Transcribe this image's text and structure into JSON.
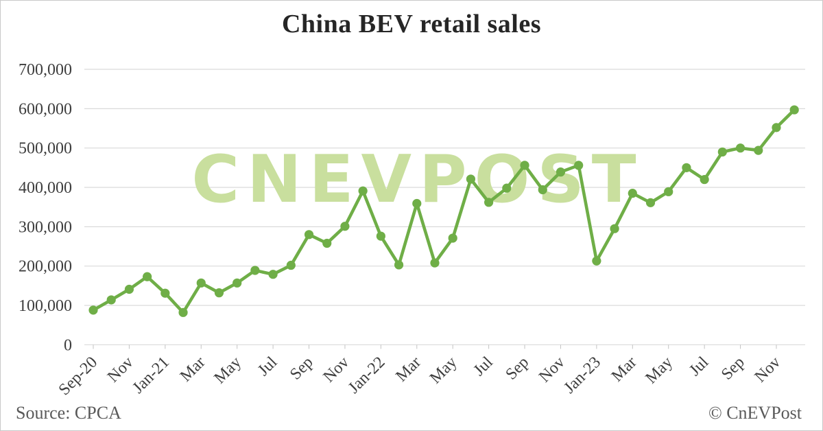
{
  "title": "China BEV retail sales",
  "watermark": "CNEVPOST",
  "footer": {
    "source": "Source: CPCA",
    "copyright": "© CnEVPost"
  },
  "colors": {
    "line": "#6fae47",
    "marker": "#6fae47",
    "watermark": "#c9df9e",
    "grid": "#d9d9d9",
    "tick": "#c3c3c3",
    "axis_text": "#3d3d3d",
    "title_text": "#262626",
    "footer_text": "#595959",
    "background": "#ffffff",
    "border": "#c9c9c9"
  },
  "chart_data": {
    "type": "line",
    "title": "China BEV retail sales",
    "xlabel": "",
    "ylabel": "",
    "ylim": [
      0,
      700000
    ],
    "y_tick_step": 100000,
    "grid": "horizontal",
    "legend": "none",
    "marker": "circle",
    "source": "CPCA",
    "categories": [
      "Sep-20",
      "Oct-20",
      "Nov-20",
      "Dec-20",
      "Jan-21",
      "Feb-21",
      "Mar-21",
      "Apr-21",
      "May-21",
      "Jun-21",
      "Jul-21",
      "Aug-21",
      "Sep-21",
      "Oct-21",
      "Nov-21",
      "Dec-21",
      "Jan-22",
      "Feb-22",
      "Mar-22",
      "Apr-22",
      "May-22",
      "Jun-22",
      "Jul-22",
      "Aug-22",
      "Sep-22",
      "Oct-22",
      "Nov-22",
      "Dec-22",
      "Jan-23",
      "Feb-23",
      "Mar-23",
      "Apr-23",
      "May-23",
      "Jun-23",
      "Jul-23",
      "Aug-23",
      "Sep-23",
      "Oct-23",
      "Nov-23",
      "Dec-23"
    ],
    "values": [
      88000,
      114000,
      141000,
      173000,
      131000,
      82000,
      157000,
      132000,
      157000,
      189000,
      179000,
      202000,
      280000,
      258000,
      301000,
      391000,
      276000,
      203000,
      359000,
      208000,
      271000,
      421000,
      362000,
      398000,
      456000,
      394000,
      439000,
      456000,
      213000,
      295000,
      385000,
      361000,
      389000,
      450000,
      420000,
      490000,
      500000,
      494000,
      552000,
      597000
    ],
    "x_tick_labels": [
      "Sep-20",
      "Nov",
      "Jan-21",
      "Mar",
      "May",
      "Jul",
      "Sep",
      "Nov",
      "Jan-22",
      "Mar",
      "May",
      "Jul",
      "Sep",
      "Nov",
      "Jan-23",
      "Mar",
      "May",
      "Jul",
      "Sep",
      "Nov"
    ],
    "x_tick_every": 2,
    "y_ticks": [
      0,
      100000,
      200000,
      300000,
      400000,
      500000,
      600000,
      700000
    ],
    "y_tick_labels": [
      "0",
      "100,000",
      "200,000",
      "300,000",
      "400,000",
      "500,000",
      "600,000",
      "700,000"
    ]
  }
}
